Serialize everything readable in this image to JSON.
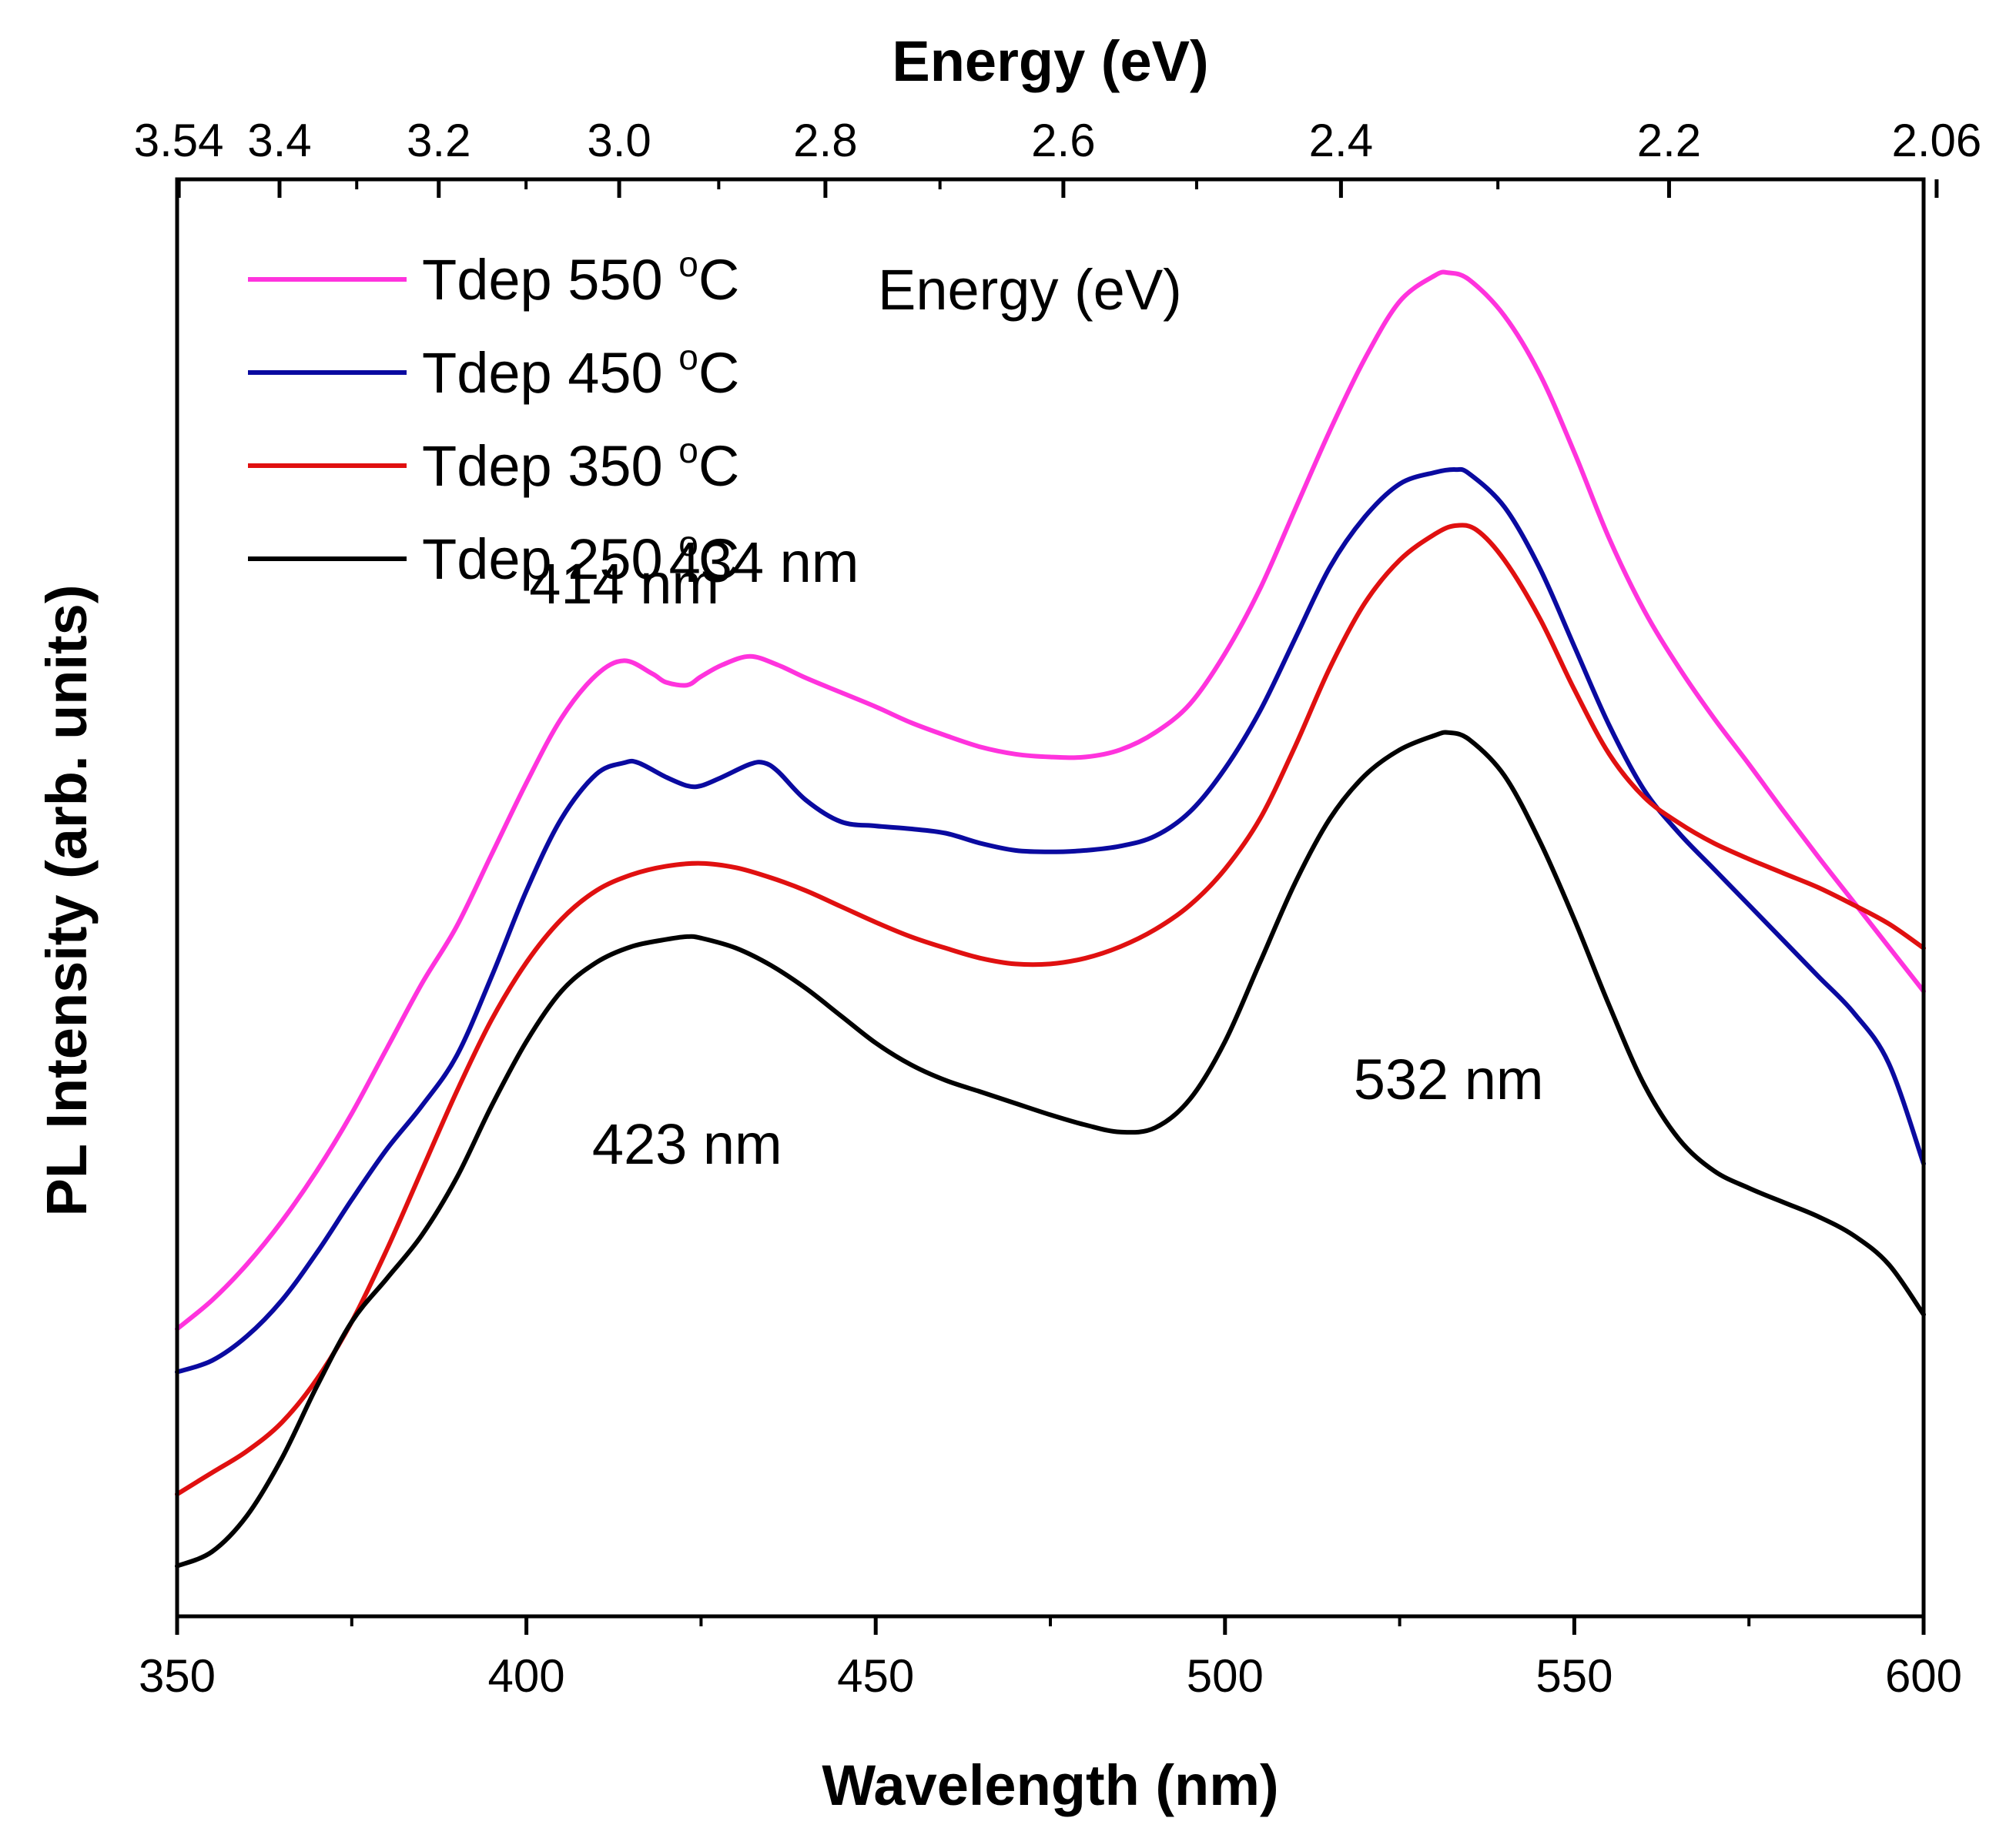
{
  "chart_data": {
    "type": "line",
    "xlabel": "Wavelength (nm)",
    "ylabel": "PL Intensity (arb. units)",
    "top_axis_label": "Energy (eV)",
    "inner_label": "Energy (eV)",
    "xlim": [
      350,
      600
    ],
    "ylim": [
      0,
      100
    ],
    "x_ticks": [
      "350",
      "400",
      "450",
      "500",
      "550",
      "600"
    ],
    "x_tick_values": [
      350,
      400,
      450,
      500,
      550,
      600
    ],
    "top_ticks": [
      {
        "label": "3.54",
        "energy": 3.54
      },
      {
        "label": "3.4",
        "energy": 3.4
      },
      {
        "label": "3.2",
        "energy": 3.2
      },
      {
        "label": "3.0",
        "energy": 3.0
      },
      {
        "label": "2.8",
        "energy": 2.8
      },
      {
        "label": "2.6",
        "energy": 2.6
      },
      {
        "label": "2.4",
        "energy": 2.4
      },
      {
        "label": "2.2",
        "energy": 2.2
      },
      {
        "label": "2.06",
        "energy": 2.06
      }
    ],
    "top_minor_ticks": [
      3.3,
      3.1,
      2.9,
      2.7,
      2.5,
      2.3
    ],
    "series": [
      {
        "name": "Tdep 550 °C",
        "name_base": "Tdep 550 ",
        "name_unit": "C",
        "name_sup": "o",
        "color": "#ff33dd",
        "x": [
          350,
          355,
          360,
          365,
          370,
          375,
          380,
          385,
          390,
          395,
          400,
          405,
          410,
          414,
          418,
          420,
          423,
          425,
          428,
          432,
          436,
          440,
          445,
          450,
          455,
          460,
          465,
          470,
          475,
          480,
          485,
          490,
          495,
          500,
          505,
          510,
          515,
          520,
          525,
          530,
          532,
          535,
          540,
          545,
          550,
          555,
          560,
          565,
          570,
          575,
          580,
          585,
          590,
          595,
          600
        ],
        "y": [
          20,
          22,
          24.5,
          27.5,
          31,
          35,
          39.5,
          44,
          48,
          53,
          58,
          62.5,
          65.5,
          66.5,
          65.6,
          65.0,
          64.8,
          65.4,
          66.2,
          66.8,
          66.2,
          65.3,
          64.3,
          63.3,
          62.2,
          61.3,
          60.5,
          60.0,
          59.8,
          59.8,
          60.3,
          61.5,
          63.5,
          67,
          71.5,
          77,
          82.5,
          87.5,
          91.5,
          93.3,
          93.5,
          93.0,
          90.5,
          86.5,
          81,
          75,
          70,
          66,
          62.5,
          59.3,
          56.0,
          52.8,
          49.7,
          46.6,
          43.5
        ]
      },
      {
        "name": "Tdep 450 °C",
        "name_base": "Tdep 450 ",
        "name_unit": "C",
        "name_sup": "o",
        "color": "#0a0aa0",
        "x": [
          350,
          355,
          360,
          365,
          370,
          375,
          380,
          385,
          390,
          395,
          400,
          405,
          410,
          414,
          416,
          420,
          423,
          425,
          428,
          432,
          434,
          436,
          440,
          445,
          450,
          455,
          460,
          465,
          470,
          475,
          480,
          485,
          490,
          495,
          500,
          505,
          510,
          515,
          520,
          525,
          530,
          533,
          535,
          540,
          545,
          550,
          555,
          560,
          565,
          570,
          575,
          580,
          585,
          590,
          595,
          600
        ],
        "y": [
          17,
          17.8,
          19.5,
          22,
          25.3,
          29,
          32.5,
          35.5,
          39,
          44.5,
          50.5,
          55.5,
          58.6,
          59.4,
          59.4,
          58.4,
          57.8,
          57.8,
          58.4,
          59.3,
          59.4,
          58.8,
          56.8,
          55.3,
          55.0,
          54.8,
          54.5,
          53.8,
          53.3,
          53.2,
          53.3,
          53.6,
          54.3,
          56.0,
          59.0,
          63,
          68,
          73,
          76.5,
          78.8,
          79.6,
          79.8,
          79.5,
          77.2,
          73,
          67.5,
          62,
          57.5,
          54.5,
          52.0,
          49.5,
          47.0,
          44.5,
          42.0,
          38.5,
          31.5
        ]
      },
      {
        "name": "Tdep 350 °C",
        "name_base": "Tdep 350 ",
        "name_unit": "C",
        "name_sup": "o",
        "color": "#e01010",
        "x": [
          350,
          355,
          360,
          365,
          370,
          375,
          380,
          385,
          390,
          395,
          400,
          405,
          410,
          415,
          420,
          425,
          430,
          435,
          440,
          445,
          450,
          455,
          460,
          465,
          470,
          475,
          480,
          485,
          490,
          495,
          500,
          505,
          510,
          515,
          520,
          525,
          530,
          533,
          536,
          540,
          545,
          550,
          555,
          560,
          565,
          570,
          575,
          580,
          585,
          590,
          595,
          600
        ],
        "y": [
          8.5,
          10,
          11.5,
          13.5,
          16.5,
          20.5,
          25.5,
          31,
          36.5,
          41.5,
          45.5,
          48.5,
          50.5,
          51.6,
          52.2,
          52.4,
          52.1,
          51.4,
          50.5,
          49.4,
          48.3,
          47.3,
          46.5,
          45.8,
          45.4,
          45.4,
          45.8,
          46.6,
          47.8,
          49.5,
          52.0,
          55.5,
          60.5,
          66,
          70.5,
          73.5,
          75.3,
          75.9,
          75.6,
          73.5,
          69.5,
          64.5,
          60.0,
          57.0,
          55.2,
          53.8,
          52.7,
          51.7,
          50.7,
          49.5,
          48.2,
          46.5
        ]
      },
      {
        "name": "Tdep 250 °C",
        "name_base": "Tdep 250 ",
        "name_unit": "C",
        "name_sup": "o",
        "color": "#000000",
        "x": [
          350,
          355,
          360,
          365,
          370,
          375,
          380,
          385,
          390,
          395,
          400,
          405,
          410,
          415,
          420,
          423,
          425,
          430,
          435,
          440,
          445,
          450,
          455,
          460,
          465,
          470,
          475,
          480,
          485,
          490,
          495,
          500,
          505,
          510,
          515,
          520,
          525,
          530,
          532,
          535,
          540,
          545,
          550,
          555,
          560,
          565,
          570,
          575,
          580,
          585,
          590,
          595,
          600
        ],
        "y": [
          3.5,
          4.5,
          7,
          11,
          16,
          20.5,
          23.5,
          26.5,
          30.5,
          35.5,
          40,
          43.5,
          45.5,
          46.6,
          47.1,
          47.3,
          47.2,
          46.5,
          45.3,
          43.7,
          41.8,
          39.9,
          38.4,
          37.3,
          36.5,
          35.7,
          34.9,
          34.2,
          33.7,
          34.0,
          36.0,
          40,
          45.5,
          51,
          55.5,
          58.5,
          60.3,
          61.3,
          61.5,
          61.0,
          58.5,
          54,
          48.5,
          42.5,
          37.0,
          33.2,
          31.0,
          29.8,
          28.8,
          27.8,
          26.5,
          24.5,
          21.0
        ]
      }
    ],
    "annotations": [
      {
        "text": "414 nm",
        "x": 414,
        "y": 70.5
      },
      {
        "text": "434 nm",
        "x": 434,
        "y": 72.0
      },
      {
        "text": "423 nm",
        "x": 423,
        "y": 31.5
      },
      {
        "text": "532 nm",
        "x": 532,
        "y": 36.0
      }
    ]
  }
}
